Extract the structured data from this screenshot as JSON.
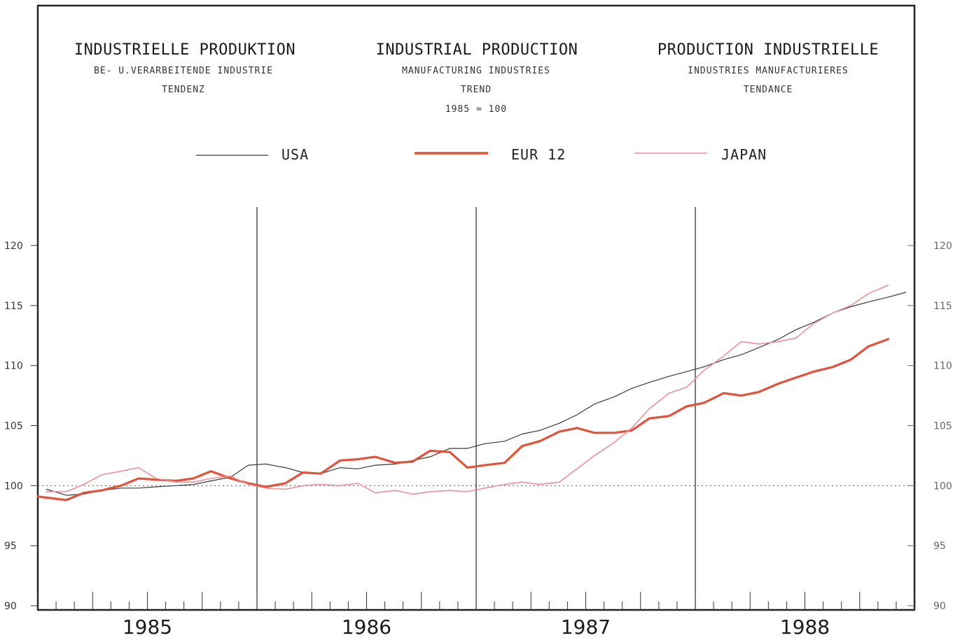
{
  "titles": [
    {
      "title": "INDUSTRIELLE PRODUKTION",
      "subtitles": [
        "BE- U.VERARBEITENDE INDUSTRIE",
        "TENDENZ"
      ]
    },
    {
      "title": "INDUSTRIAL PRODUCTION",
      "subtitles": [
        "MANUFACTURING INDUSTRIES",
        "TREND",
        "1985 = 100"
      ]
    },
    {
      "title": "PRODUCTION INDUSTRIELLE",
      "subtitles": [
        "INDUSTRIES MANUFACTURIERES",
        "TENDANCE"
      ]
    }
  ],
  "legend": [
    {
      "label": "USA",
      "color": "#3a3a3a"
    },
    {
      "label": "EUR 12",
      "color": "#e0533a"
    },
    {
      "label": "JAPAN",
      "color": "#e8909c"
    }
  ],
  "chart_data": {
    "type": "line",
    "ylim": [
      90,
      120
    ],
    "yticks": [
      90,
      95,
      100,
      105,
      110,
      115,
      120
    ],
    "baseline": 100,
    "grid": false,
    "legend_position": "top",
    "x_start": 1985.0,
    "x_end": 1989.0,
    "year_labels": [
      {
        "label": "1985",
        "x": 1985.5
      },
      {
        "label": "1986",
        "x": 1986.5
      },
      {
        "label": "1987",
        "x": 1987.5
      },
      {
        "label": "1988",
        "x": 1988.5
      }
    ],
    "year_separators": [
      1986.0,
      1987.0,
      1988.0
    ],
    "series": [
      {
        "name": "USA",
        "color": "#3a3a3a",
        "width": 1.2,
        "x": [
          1985.04,
          1985.13,
          1985.21,
          1985.29,
          1985.38,
          1985.46,
          1985.54,
          1985.63,
          1985.71,
          1985.79,
          1985.88,
          1985.96,
          1986.04,
          1986.13,
          1986.21,
          1986.29,
          1986.38,
          1986.46,
          1986.54,
          1986.63,
          1986.71,
          1986.79,
          1986.88,
          1986.96,
          1987.04,
          1987.13,
          1987.21,
          1987.29,
          1987.38,
          1987.46,
          1987.54,
          1987.63,
          1987.71,
          1987.79,
          1987.88,
          1987.96,
          1988.04,
          1988.13,
          1988.21,
          1988.29,
          1988.38,
          1988.46,
          1988.54,
          1988.63,
          1988.71,
          1988.79,
          1988.88,
          1988.96
        ],
        "values": [
          99.7,
          99.2,
          99.3,
          99.6,
          99.8,
          99.8,
          99.9,
          100.0,
          100.1,
          100.4,
          100.7,
          101.7,
          101.8,
          101.5,
          101.1,
          101.0,
          101.5,
          101.4,
          101.7,
          101.8,
          102.1,
          102.4,
          103.1,
          103.1,
          103.5,
          103.7,
          104.3,
          104.6,
          105.2,
          105.9,
          106.8,
          107.4,
          108.1,
          108.6,
          109.1,
          109.5,
          109.9,
          110.5,
          110.9,
          111.5,
          112.2,
          113.0,
          113.6,
          114.4,
          114.9,
          115.3,
          115.7,
          116.1
        ]
      },
      {
        "name": "EUR 12",
        "color": "#e0533a",
        "width": 3.2,
        "x": [
          1985.0,
          1985.04,
          1985.13,
          1985.21,
          1985.29,
          1985.38,
          1985.46,
          1985.54,
          1985.63,
          1985.71,
          1985.79,
          1985.88,
          1985.96,
          1986.04,
          1986.13,
          1986.21,
          1986.29,
          1986.38,
          1986.46,
          1986.54,
          1986.63,
          1986.71,
          1986.79,
          1986.88,
          1986.96,
          1987.04,
          1987.13,
          1987.21,
          1987.29,
          1987.38,
          1987.46,
          1987.54,
          1987.63,
          1987.71,
          1987.79,
          1987.88,
          1987.96,
          1988.04,
          1988.13,
          1988.21,
          1988.29,
          1988.38,
          1988.46,
          1988.54,
          1988.63,
          1988.71,
          1988.79,
          1988.88
        ],
        "values": [
          99.1,
          99.0,
          98.8,
          99.4,
          99.6,
          100.0,
          100.6,
          100.5,
          100.4,
          100.6,
          101.2,
          100.6,
          100.2,
          99.9,
          100.2,
          101.1,
          101.0,
          102.1,
          102.2,
          102.4,
          101.9,
          102.0,
          102.9,
          102.8,
          101.5,
          101.7,
          101.9,
          103.3,
          103.7,
          104.5,
          104.8,
          104.4,
          104.4,
          104.6,
          105.6,
          105.8,
          106.6,
          106.9,
          107.7,
          107.5,
          107.8,
          108.5,
          109.0,
          109.5,
          109.9,
          110.5,
          111.6,
          112.2
        ]
      },
      {
        "name": "JAPAN",
        "color": "#e8909c",
        "width": 1.6,
        "x": [
          1985.04,
          1985.13,
          1985.21,
          1985.29,
          1985.38,
          1985.46,
          1985.54,
          1985.63,
          1985.71,
          1985.79,
          1985.88,
          1985.96,
          1986.04,
          1986.13,
          1986.21,
          1986.29,
          1986.38,
          1986.46,
          1986.54,
          1986.63,
          1986.71,
          1986.79,
          1986.88,
          1986.96,
          1987.04,
          1987.13,
          1987.21,
          1987.29,
          1987.38,
          1987.46,
          1987.54,
          1987.63,
          1987.71,
          1987.79,
          1987.88,
          1987.96,
          1988.04,
          1988.13,
          1988.21,
          1988.29,
          1988.38,
          1988.46,
          1988.54,
          1988.63,
          1988.71,
          1988.79,
          1988.88
        ],
        "values": [
          99.5,
          99.5,
          100.1,
          100.9,
          101.2,
          101.5,
          100.6,
          100.3,
          100.3,
          100.6,
          100.8,
          100.1,
          99.8,
          99.7,
          100.0,
          100.1,
          100.0,
          100.2,
          99.4,
          99.6,
          99.3,
          99.5,
          99.6,
          99.5,
          99.8,
          100.1,
          100.3,
          100.1,
          100.3,
          101.4,
          102.5,
          103.6,
          104.8,
          106.4,
          107.7,
          108.2,
          109.6,
          110.8,
          112.0,
          111.8,
          112.0,
          112.3,
          113.5,
          114.4,
          115.0,
          116.0,
          116.7
        ]
      }
    ]
  }
}
